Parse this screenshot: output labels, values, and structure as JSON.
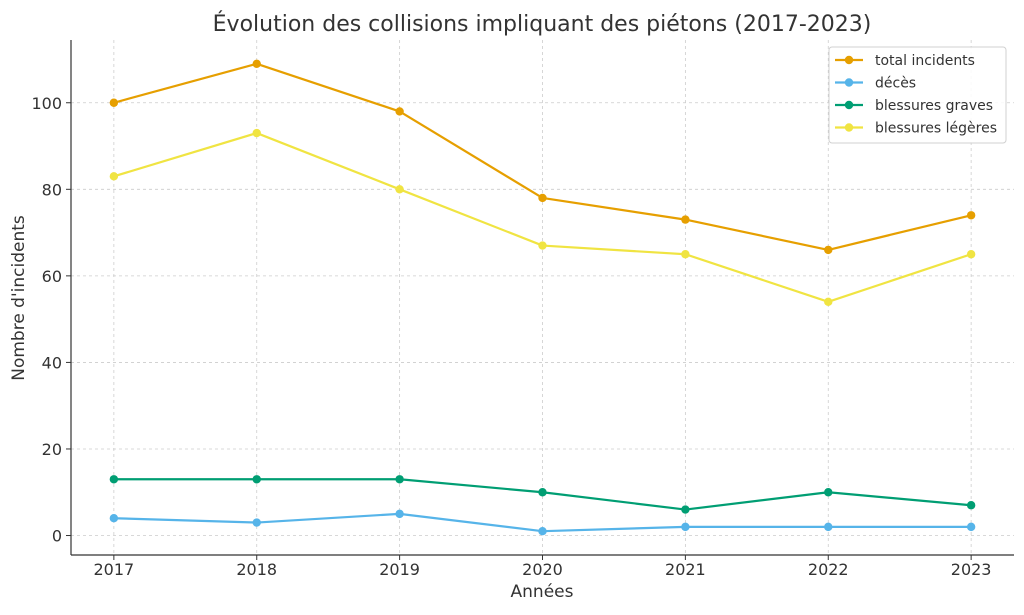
{
  "chart_data": {
    "type": "line",
    "title": "Évolution des collisions impliquant des piétons (2017-2023)",
    "xlabel": "Années",
    "ylabel": "Nombre d'incidents",
    "x": [
      2017,
      2018,
      2019,
      2020,
      2021,
      2022,
      2023
    ],
    "x_tick_labels": [
      "2017",
      "2018",
      "2019",
      "2020",
      "2021",
      "2022",
      "2023"
    ],
    "xlim": [
      2016.7,
      2023.3
    ],
    "ylim": [
      -4.5,
      114.5
    ],
    "y_ticks": [
      0,
      20,
      40,
      60,
      80,
      100
    ],
    "grid": true,
    "legend_position": "top-right",
    "series": [
      {
        "name": "total incidents",
        "color": "#E69F00",
        "values": [
          100,
          109,
          98,
          78,
          73,
          66,
          74
        ]
      },
      {
        "name": "décès",
        "color": "#56B4E9",
        "values": [
          4,
          3,
          5,
          1,
          2,
          2,
          2
        ]
      },
      {
        "name": "blessures graves",
        "color": "#009E73",
        "values": [
          13,
          13,
          13,
          10,
          6,
          10,
          7
        ]
      },
      {
        "name": "blessures légères",
        "color": "#F0E442",
        "values": [
          83,
          93,
          80,
          67,
          65,
          54,
          65
        ]
      }
    ]
  }
}
